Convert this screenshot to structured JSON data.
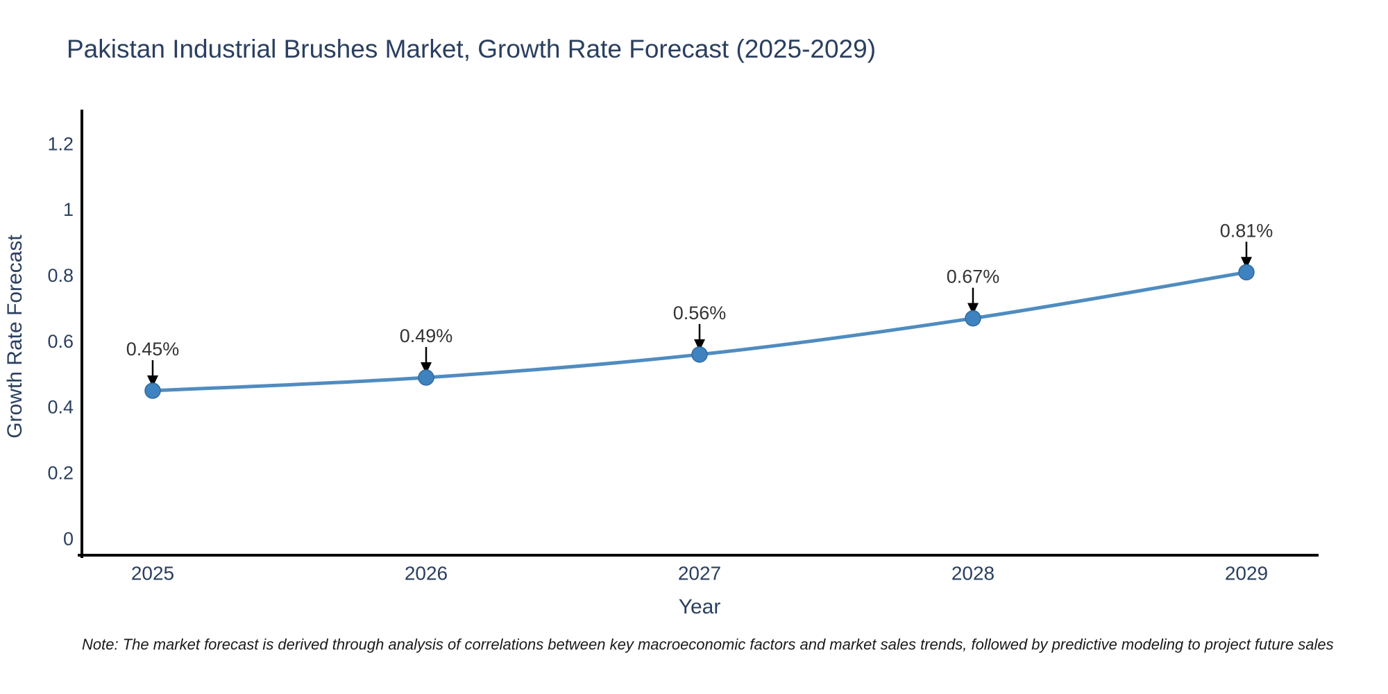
{
  "note": "Note: The market forecast is derived through analysis of correlations between key macroeconomic factors and market sales trends, followed by predictive modeling to project future sales",
  "chart_data": {
    "type": "line",
    "title": "Pakistan Industrial Brushes Market, Growth Rate Forecast (2025-2029)",
    "xlabel": "Year",
    "ylabel": "Growth Rate Forecast",
    "categories": [
      "2025",
      "2026",
      "2027",
      "2028",
      "2029"
    ],
    "values": [
      0.45,
      0.49,
      0.56,
      0.67,
      0.81
    ],
    "point_labels": [
      "0.45%",
      "0.49%",
      "0.56%",
      "0.67%",
      "0.81%"
    ],
    "ylim": [
      -0.05,
      1.3
    ],
    "yticks": {
      "values": [
        0,
        0.2,
        0.4,
        0.6,
        0.8,
        1,
        1.2
      ],
      "labels": [
        "0",
        "0.2",
        "0.4",
        "0.6",
        "0.8",
        "1",
        "1.2"
      ]
    },
    "grid": false,
    "legend": "none",
    "annotation_arrows": "down",
    "colors": {
      "line": "#4f8cc0",
      "marker": "#3e83c0",
      "marker_edge": "#31699e",
      "axis": "#000000",
      "tick_text": "#2a3f5f",
      "annotation_text": "#333333",
      "arrow": "#000000",
      "title_text": "#2a3f5f",
      "background": "#ffffff"
    }
  }
}
